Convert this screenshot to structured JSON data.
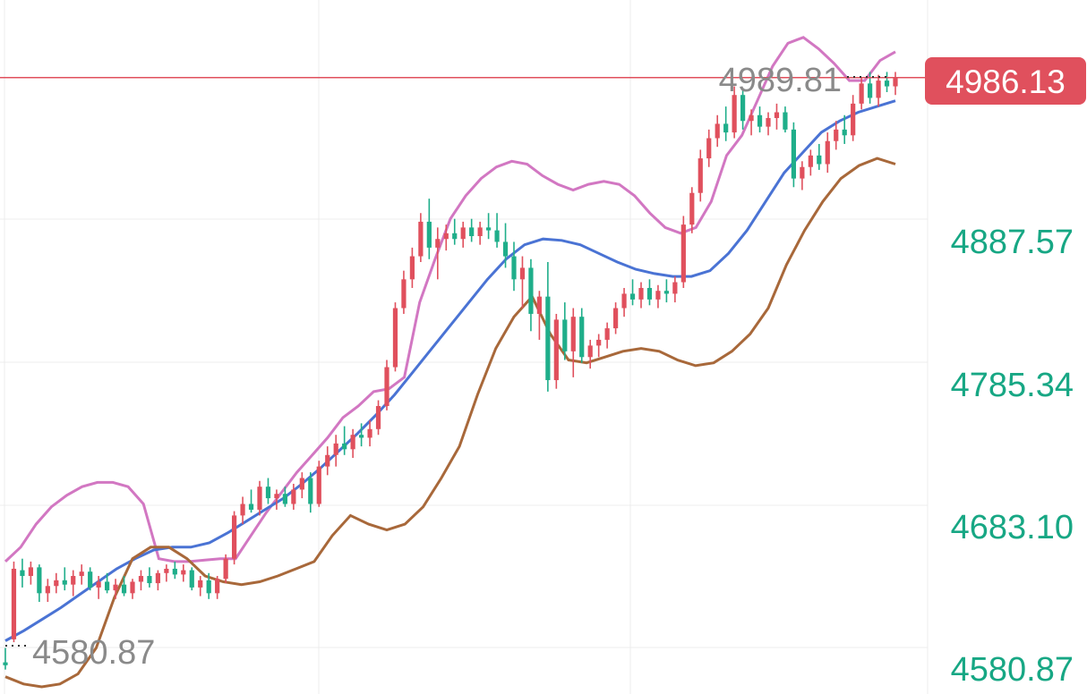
{
  "chart_data": {
    "type": "candlestick",
    "title": "",
    "xlabel": "",
    "ylabel": "",
    "ylim": [
      4563,
      5035
    ],
    "grid": true,
    "y_ticks": [
      "4887.57",
      "4785.34",
      "4683.10",
      "4580.87"
    ],
    "current_price": "4986.13",
    "max_label": "4989.81",
    "min_label": "4580.87",
    "colors": {
      "up": "#e0505d",
      "down": "#1fae8a",
      "upper_band": "#d277c2",
      "middle_band": "#4a73d4",
      "lower_band": "#a8683a",
      "price_line": "#e0505d",
      "tick_text": "#17a784",
      "grid": "#ececec"
    },
    "candles": [
      [
        4580,
        4590,
        4575,
        4578
      ],
      [
        4596,
        4650,
        4594,
        4645
      ],
      [
        4644,
        4652,
        4632,
        4640
      ],
      [
        4640,
        4650,
        4634,
        4646
      ],
      [
        4646,
        4648,
        4622,
        4628
      ],
      [
        4628,
        4638,
        4622,
        4633
      ],
      [
        4633,
        4642,
        4628,
        4637
      ],
      [
        4637,
        4646,
        4630,
        4634
      ],
      [
        4634,
        4644,
        4626,
        4640
      ],
      [
        4640,
        4648,
        4634,
        4643
      ],
      [
        4643,
        4646,
        4630,
        4632
      ],
      [
        4632,
        4640,
        4624,
        4636
      ],
      [
        4636,
        4642,
        4628,
        4630
      ],
      [
        4630,
        4638,
        4624,
        4634
      ],
      [
        4634,
        4640,
        4626,
        4628
      ],
      [
        4628,
        4638,
        4624,
        4636
      ],
      [
        4636,
        4644,
        4630,
        4640
      ],
      [
        4640,
        4646,
        4632,
        4635
      ],
      [
        4635,
        4644,
        4630,
        4642
      ],
      [
        4642,
        4648,
        4636,
        4645
      ],
      [
        4645,
        4650,
        4638,
        4641
      ],
      [
        4641,
        4648,
        4636,
        4644
      ],
      [
        4644,
        4646,
        4630,
        4632
      ],
      [
        4632,
        4640,
        4626,
        4637
      ],
      [
        4637,
        4642,
        4624,
        4628
      ],
      [
        4628,
        4640,
        4624,
        4638
      ],
      [
        4638,
        4655,
        4635,
        4652
      ],
      [
        4652,
        4685,
        4648,
        4682
      ],
      [
        4682,
        4695,
        4676,
        4690
      ],
      [
        4690,
        4700,
        4684,
        4686
      ],
      [
        4686,
        4706,
        4682,
        4702
      ],
      [
        4702,
        4708,
        4690,
        4694
      ],
      [
        4694,
        4700,
        4686,
        4697
      ],
      [
        4697,
        4702,
        4688,
        4690
      ],
      [
        4690,
        4704,
        4686,
        4700
      ],
      [
        4700,
        4712,
        4694,
        4708
      ],
      [
        4708,
        4712,
        4684,
        4690
      ],
      [
        4690,
        4720,
        4688,
        4716
      ],
      [
        4716,
        4730,
        4710,
        4724
      ],
      [
        4724,
        4738,
        4716,
        4732
      ],
      [
        4732,
        4744,
        4724,
        4728
      ],
      [
        4728,
        4742,
        4722,
        4738
      ],
      [
        4738,
        4746,
        4730,
        4736
      ],
      [
        4736,
        4748,
        4730,
        4742
      ],
      [
        4742,
        4762,
        4738,
        4758
      ],
      [
        4758,
        4790,
        4755,
        4785
      ],
      [
        4785,
        4830,
        4782,
        4826
      ],
      [
        4826,
        4852,
        4822,
        4846
      ],
      [
        4846,
        4868,
        4840,
        4862
      ],
      [
        4862,
        4892,
        4858,
        4886
      ],
      [
        4886,
        4902,
        4860,
        4868
      ],
      [
        4868,
        4882,
        4846,
        4874
      ],
      [
        4874,
        4884,
        4866,
        4878
      ],
      [
        4878,
        4888,
        4870,
        4874
      ],
      [
        4874,
        4886,
        4868,
        4882
      ],
      [
        4882,
        4888,
        4872,
        4876
      ],
      [
        4876,
        4886,
        4870,
        4882
      ],
      [
        4882,
        4892,
        4874,
        4880
      ],
      [
        4880,
        4892,
        4868,
        4872
      ],
      [
        4872,
        4885,
        4854,
        4862
      ],
      [
        4862,
        4872,
        4838,
        4846
      ],
      [
        4846,
        4862,
        4826,
        4854
      ],
      [
        4854,
        4860,
        4810,
        4822
      ],
      [
        4822,
        4838,
        4804,
        4834
      ],
      [
        4834,
        4858,
        4768,
        4776
      ],
      [
        4776,
        4822,
        4770,
        4818
      ],
      [
        4818,
        4830,
        4790,
        4796
      ],
      [
        4796,
        4826,
        4778,
        4820
      ],
      [
        4820,
        4826,
        4788,
        4792
      ],
      [
        4792,
        4804,
        4784,
        4800
      ],
      [
        4800,
        4808,
        4792,
        4804
      ],
      [
        4804,
        4816,
        4798,
        4812
      ],
      [
        4812,
        4830,
        4808,
        4826
      ],
      [
        4826,
        4840,
        4820,
        4836
      ],
      [
        4836,
        4846,
        4828,
        4832
      ],
      [
        4832,
        4844,
        4826,
        4840
      ],
      [
        4840,
        4846,
        4828,
        4832
      ],
      [
        4832,
        4842,
        4826,
        4838
      ],
      [
        4838,
        4846,
        4830,
        4836
      ],
      [
        4836,
        4848,
        4830,
        4844
      ],
      [
        4844,
        4890,
        4840,
        4884
      ],
      [
        4884,
        4910,
        4878,
        4906
      ],
      [
        4906,
        4936,
        4900,
        4930
      ],
      [
        4930,
        4950,
        4924,
        4944
      ],
      [
        4944,
        4960,
        4938,
        4954
      ],
      [
        4954,
        4966,
        4942,
        4948
      ],
      [
        4948,
        4980,
        4944,
        4974
      ],
      [
        4974,
        4978,
        4950,
        4956
      ],
      [
        4956,
        4964,
        4946,
        4960
      ],
      [
        4960,
        4966,
        4948,
        4952
      ],
      [
        4952,
        4962,
        4946,
        4958
      ],
      [
        4958,
        4968,
        4950,
        4962
      ],
      [
        4962,
        4966,
        4948,
        4950
      ],
      [
        4950,
        4955,
        4910,
        4916
      ],
      [
        4916,
        4928,
        4908,
        4924
      ],
      [
        4924,
        4936,
        4918,
        4932
      ],
      [
        4932,
        4940,
        4922,
        4926
      ],
      [
        4926,
        4948,
        4920,
        4942
      ],
      [
        4942,
        4956,
        4936,
        4950
      ],
      [
        4950,
        4960,
        4940,
        4946
      ],
      [
        4946,
        4974,
        4942,
        4968
      ],
      [
        4968,
        4986,
        4964,
        4982
      ],
      [
        4982,
        4990,
        4968,
        4972
      ],
      [
        4972,
        4988,
        4966,
        4984
      ],
      [
        4984,
        4990,
        4976,
        4980
      ],
      [
        4980,
        4990,
        4974,
        4986
      ]
    ],
    "upper_band": [
      4650,
      4660,
      4676,
      4688,
      4696,
      4702,
      4705,
      4705,
      4702,
      4690,
      4652,
      4650,
      4650,
      4651,
      4652,
      4652,
      4668,
      4684,
      4698,
      4712,
      4724,
      4736,
      4750,
      4758,
      4768,
      4770,
      4778,
      4830,
      4860,
      4888,
      4904,
      4916,
      4924,
      4928,
      4926,
      4918,
      4912,
      4908,
      4912,
      4914,
      4912,
      4904,
      4892,
      4882,
      4878,
      4882,
      4900,
      4932,
      4946,
      4970,
      4994,
      5010,
      5014,
      5006,
      4996,
      4984,
      4984,
      4998,
      5004
    ],
    "middle_band": [
      4595,
      4602,
      4610,
      4618,
      4627,
      4636,
      4645,
      4652,
      4658,
      4660,
      4660,
      4663,
      4670,
      4678,
      4686,
      4694,
      4704,
      4715,
      4727,
      4739,
      4752,
      4766,
      4782,
      4798,
      4814,
      4830,
      4846,
      4860,
      4870,
      4874,
      4873,
      4870,
      4864,
      4858,
      4853,
      4850,
      4848,
      4848,
      4852,
      4864,
      4880,
      4900,
      4920,
      4934,
      4948,
      4956,
      4962,
      4966,
      4970
    ],
    "lower_band": [
      4570,
      4565,
      4563,
      4565,
      4572,
      4590,
      4625,
      4652,
      4660,
      4660,
      4652,
      4640,
      4636,
      4634,
      4636,
      4640,
      4645,
      4650,
      4668,
      4682,
      4676,
      4672,
      4676,
      4688,
      4708,
      4730,
      4766,
      4798,
      4820,
      4834,
      4808,
      4790,
      4788,
      4792,
      4796,
      4798,
      4796,
      4790,
      4786,
      4788,
      4796,
      4808,
      4826,
      4856,
      4880,
      4900,
      4916,
      4925,
      4930,
      4926
    ]
  }
}
